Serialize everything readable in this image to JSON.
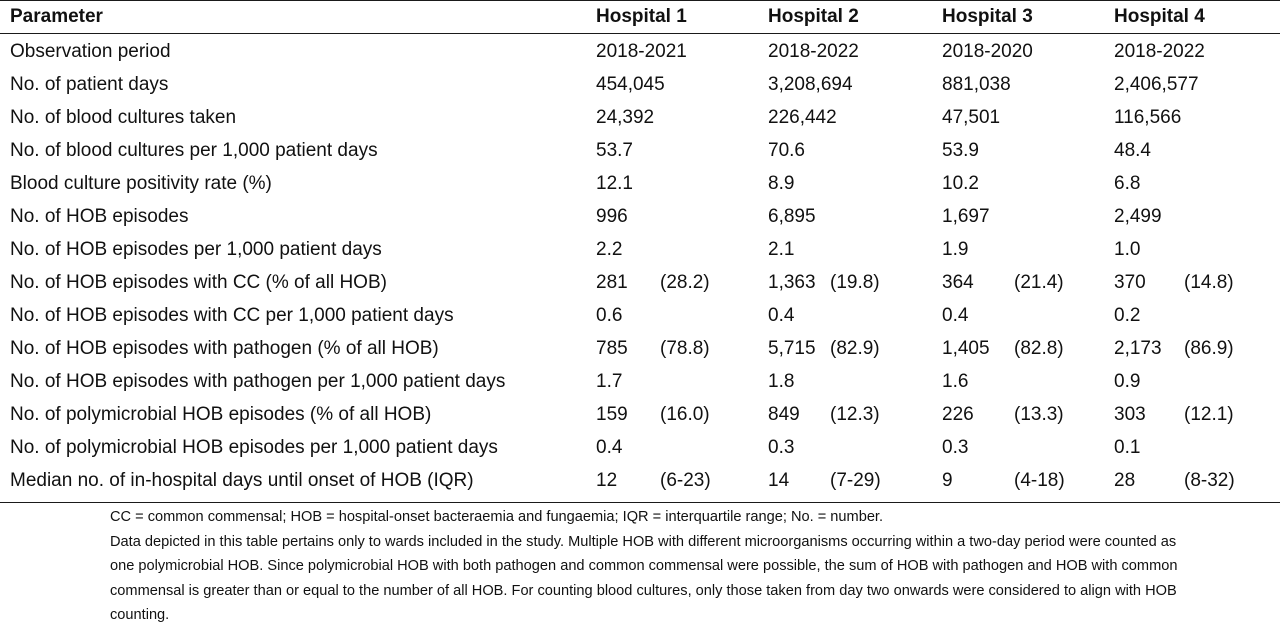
{
  "table": {
    "headers": [
      "Parameter",
      "Hospital 1",
      "Hospital 2",
      "Hospital 3",
      "Hospital 4"
    ],
    "rows": [
      {
        "label": "Observation period",
        "cells": [
          [
            "2018-2021",
            ""
          ],
          [
            "2018-2022",
            ""
          ],
          [
            "2018-2020",
            ""
          ],
          [
            "2018-2022",
            ""
          ]
        ]
      },
      {
        "label": "No. of patient days",
        "cells": [
          [
            "454,045",
            ""
          ],
          [
            "3,208,694",
            ""
          ],
          [
            "881,038",
            ""
          ],
          [
            "2,406,577",
            ""
          ]
        ]
      },
      {
        "label": "No. of blood cultures taken",
        "cells": [
          [
            "24,392",
            ""
          ],
          [
            "226,442",
            ""
          ],
          [
            "47,501",
            ""
          ],
          [
            "116,566",
            ""
          ]
        ]
      },
      {
        "label": "No. of blood cultures per 1,000 patient days",
        "cells": [
          [
            "53.7",
            ""
          ],
          [
            "70.6",
            ""
          ],
          [
            "53.9",
            ""
          ],
          [
            "48.4",
            ""
          ]
        ]
      },
      {
        "label": "Blood culture positivity rate (%)",
        "cells": [
          [
            "12.1",
            ""
          ],
          [
            "8.9",
            ""
          ],
          [
            "10.2",
            ""
          ],
          [
            "6.8",
            ""
          ]
        ]
      },
      {
        "label": "No. of HOB episodes",
        "cells": [
          [
            "996",
            ""
          ],
          [
            "6,895",
            ""
          ],
          [
            "1,697",
            ""
          ],
          [
            "2,499",
            ""
          ]
        ]
      },
      {
        "label": "No. of HOB episodes per 1,000 patient days",
        "cells": [
          [
            "2.2",
            ""
          ],
          [
            "2.1",
            ""
          ],
          [
            "1.9",
            ""
          ],
          [
            "1.0",
            ""
          ]
        ]
      },
      {
        "label": "No. of HOB episodes with CC (% of all HOB)",
        "cells": [
          [
            "281",
            "(28.2)"
          ],
          [
            "1,363",
            "(19.8)"
          ],
          [
            "364",
            "(21.4)"
          ],
          [
            "370",
            "(14.8)"
          ]
        ]
      },
      {
        "label": "No. of HOB episodes with CC per 1,000 patient days",
        "cells": [
          [
            "0.6",
            ""
          ],
          [
            "0.4",
            ""
          ],
          [
            "0.4",
            ""
          ],
          [
            "0.2",
            ""
          ]
        ]
      },
      {
        "label": "No. of HOB episodes with pathogen (% of all HOB)",
        "cells": [
          [
            "785",
            "(78.8)"
          ],
          [
            "5,715",
            "(82.9)"
          ],
          [
            "1,405",
            "(82.8)"
          ],
          [
            "2,173",
            "(86.9)"
          ]
        ]
      },
      {
        "label": "No. of HOB episodes with pathogen per 1,000 patient days",
        "cells": [
          [
            "1.7",
            ""
          ],
          [
            "1.8",
            ""
          ],
          [
            "1.6",
            ""
          ],
          [
            "0.9",
            ""
          ]
        ]
      },
      {
        "label": "No. of polymicrobial HOB episodes (% of all HOB)",
        "cells": [
          [
            "159",
            "(16.0)"
          ],
          [
            "849",
            "(12.3)"
          ],
          [
            "226",
            "(13.3)"
          ],
          [
            "303",
            "(12.1)"
          ]
        ]
      },
      {
        "label": "No. of polymicrobial HOB episodes per 1,000 patient days",
        "cells": [
          [
            "0.4",
            ""
          ],
          [
            "0.3",
            ""
          ],
          [
            "0.3",
            ""
          ],
          [
            "0.1",
            ""
          ]
        ]
      },
      {
        "label": "Median no. of in-hospital days until onset of HOB (IQR)",
        "cells": [
          [
            "12",
            "(6-23)"
          ],
          [
            "14",
            "(7-29)"
          ],
          [
            "9",
            "(4-18)"
          ],
          [
            "28",
            "(8-32)"
          ]
        ]
      }
    ]
  },
  "footnotes": {
    "abbreviations": "CC = common commensal; HOB = hospital-onset bacteraemia and fungaemia; IQR = interquartile range; No. = number.",
    "note": "Data depicted in this table pertains only to wards included in the study. Multiple HOB with different microorganisms occurring within a two-day period were counted as one polymicrobial HOB. Since polymicrobial HOB with both pathogen and common commensal were possible, the sum of HOB with pathogen and HOB with common commensal is greater than or equal to the number of all HOB. For counting blood cultures, only those taken from day two onwards were considered to align with HOB counting."
  }
}
